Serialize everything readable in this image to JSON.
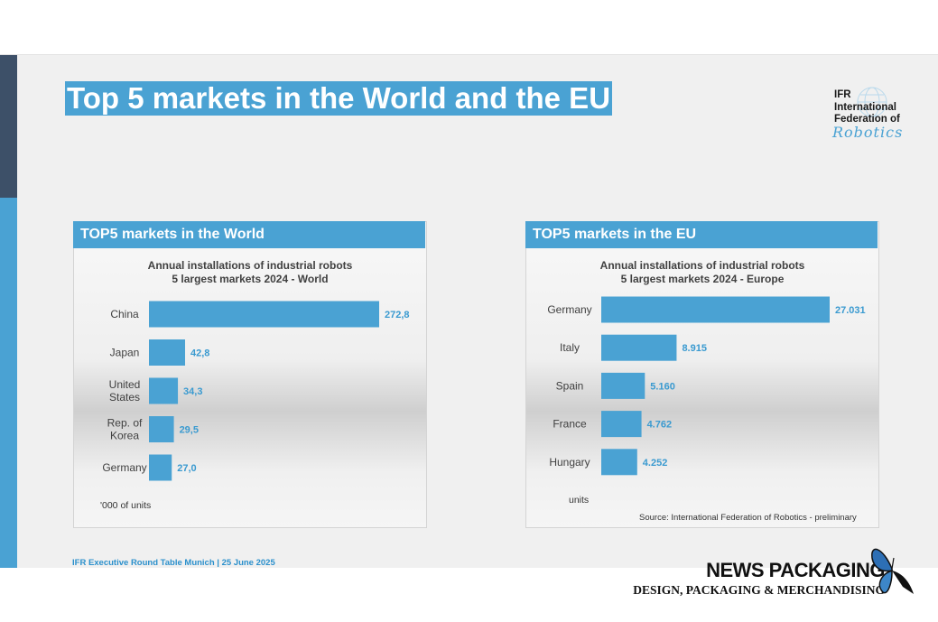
{
  "slide": {
    "title": "Top 5 markets in the World and the EU",
    "footer": "IFR Executive Round Table Munich | 25 June 2025"
  },
  "logo": {
    "line1": "IFR",
    "line2": "International",
    "line3": "Federation of",
    "script": "Robotics"
  },
  "world_panel": {
    "header": "TOP5 markets in the World",
    "title_line1": "Annual installations of industrial robots",
    "title_line2": "5 largest markets 2024 - World",
    "unit_note": "'000 of units"
  },
  "eu_panel": {
    "header": "TOP5 markets in the EU",
    "title_line1": "Annual installations of industrial robots",
    "title_line2": "5 largest markets 2024 - Europe",
    "unit_note": "units",
    "source": "Source: International Federation of Robotics - preliminary"
  },
  "chart_data": [
    {
      "type": "bar",
      "orientation": "horizontal",
      "title": "Annual installations of industrial robots 5 largest markets 2024 - World",
      "categories": [
        [
          "China"
        ],
        [
          "Japan"
        ],
        [
          "United",
          "States"
        ],
        [
          "Rep. of",
          "Korea"
        ],
        [
          "Germany"
        ]
      ],
      "values": [
        272.8,
        42.8,
        34.3,
        29.5,
        27.0
      ],
      "value_labels": [
        "272,8",
        "42,8",
        "34,3",
        "29,5",
        "27,0"
      ],
      "unit": "'000 of units",
      "color": "#4aa2d3"
    },
    {
      "type": "bar",
      "orientation": "horizontal",
      "title": "Annual installations of industrial robots 5 largest markets 2024 - Europe",
      "categories": [
        [
          "Germany"
        ],
        [
          "Italy"
        ],
        [
          "Spain"
        ],
        [
          "France"
        ],
        [
          "Hungary"
        ]
      ],
      "values": [
        27031,
        8915,
        5160,
        4762,
        4252
      ],
      "value_labels": [
        "27.031",
        "8.915",
        "5.160",
        "4.762",
        "4.252"
      ],
      "unit": "units",
      "color": "#4aa2d3"
    }
  ],
  "brand": {
    "name": "NEWS PACKAGING",
    "tagline": "DESIGN, PACKAGING & MERCHANDISING"
  }
}
